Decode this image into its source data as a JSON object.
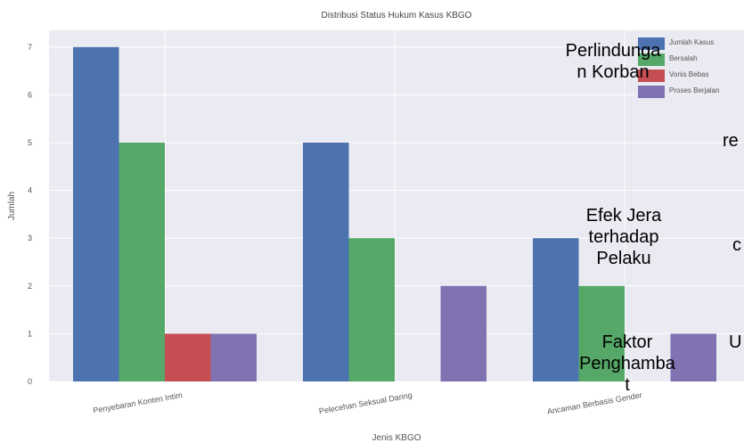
{
  "chart_data": {
    "type": "bar",
    "title": "Distribusi Status Hukum Kasus KBGO",
    "xlabel": "Jenis KBGO",
    "ylabel": "Jumlah",
    "categories": [
      "Penyebaran Konten Intim",
      "Pelecehan Seksual Daring",
      "Ancaman Berbasis Gender"
    ],
    "series": [
      {
        "name": "Jumlah Kasus",
        "color": "#4c72b0",
        "values": [
          7,
          5,
          3
        ]
      },
      {
        "name": "Bersalah",
        "color": "#55a868",
        "values": [
          5,
          3,
          2
        ]
      },
      {
        "name": "Vonis Bebas",
        "color": "#c44e52",
        "values": [
          1,
          0,
          0
        ]
      },
      {
        "name": "Proses Berjalan",
        "color": "#8172b2",
        "values": [
          1,
          2,
          1
        ]
      }
    ],
    "ylim": [
      0,
      7.35
    ],
    "yticks": [
      0,
      1,
      2,
      3,
      4,
      5,
      6,
      7
    ],
    "grid": true,
    "legend_position": "top-right",
    "plot_background": "#eaeaf2"
  },
  "overlay_labels": {
    "perlindungan": [
      "Perlindunga",
      "n Korban"
    ],
    "efek_jera": [
      "Efek Jera",
      "terhadap",
      "Pelaku"
    ],
    "faktor": [
      "Faktor",
      "Penghamba",
      "t"
    ],
    "fragment_re": "re",
    "fragment_c": "c",
    "fragment_u": "U"
  }
}
